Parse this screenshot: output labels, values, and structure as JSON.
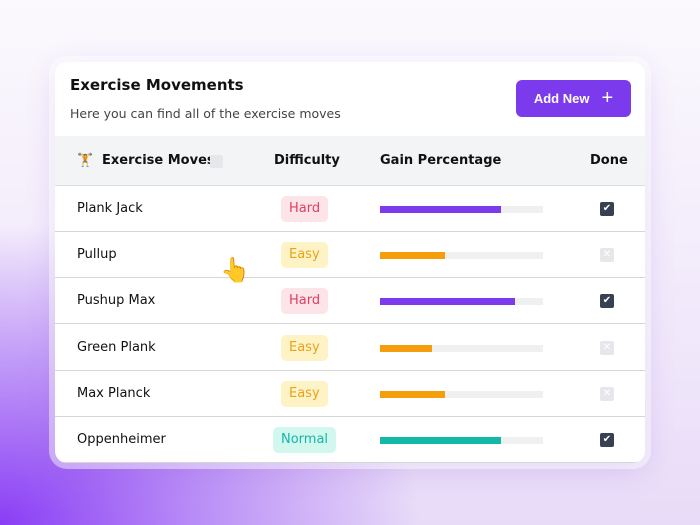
{
  "header": {
    "title": "Exercise Movements",
    "subtitle": "Here you can find all of the exercise moves",
    "add_label": "Add New"
  },
  "columns": {
    "moves": "Exercise Moves",
    "difficulty": "Difficulty",
    "gain": "Gain Percentage",
    "done": "Done"
  },
  "colors": {
    "accent": "#7c3aed",
    "hard_bg": "#fde4e8",
    "hard_fg": "#e0405f",
    "easy_bg": "#fdf3c4",
    "easy_fg": "#eba11c",
    "normal_bg": "#d2f7ee",
    "normal_fg": "#14b8a6",
    "bar_hard": "#7c3aed",
    "bar_easy": "#f59e0b",
    "bar_normal": "#14b8a6"
  },
  "rows": [
    {
      "name": "Plank Jack",
      "difficulty": "Hard",
      "gain": 74,
      "done": true
    },
    {
      "name": "Pullup",
      "difficulty": "Easy",
      "gain": 40,
      "done": false
    },
    {
      "name": "Pushup Max",
      "difficulty": "Hard",
      "gain": 83,
      "done": true
    },
    {
      "name": "Green Plank",
      "difficulty": "Easy",
      "gain": 32,
      "done": false
    },
    {
      "name": "Max Planck",
      "difficulty": "Easy",
      "gain": 40,
      "done": false
    },
    {
      "name": "Oppenheimer",
      "difficulty": "Normal",
      "gain": 74,
      "done": true
    }
  ]
}
